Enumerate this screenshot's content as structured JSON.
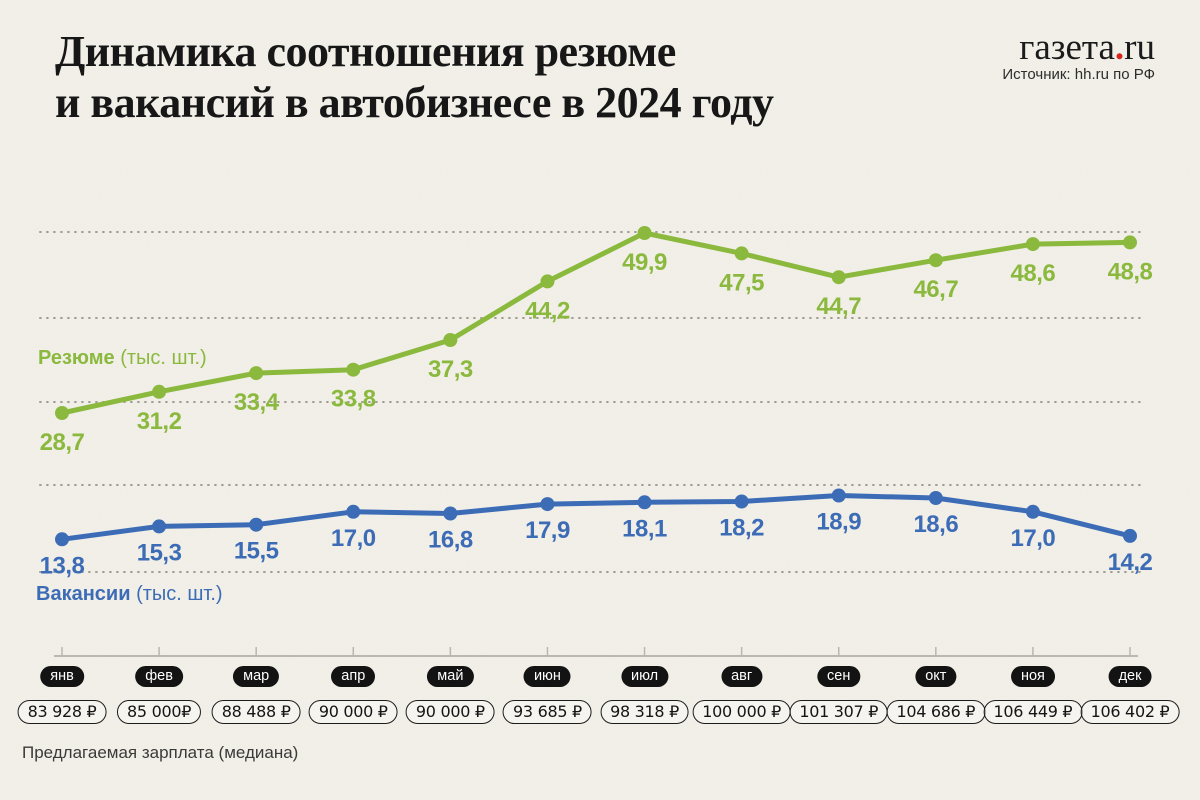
{
  "page": {
    "background": "#f2f0e8"
  },
  "header": {
    "title_line1": "Динамика соотношения резюме",
    "title_line2": "и вакансий в автобизнесе в 2024 году",
    "logo": {
      "prefix": "газета",
      "dot": ".",
      "suffix": "ru",
      "dot_color": "#d6251d"
    },
    "source": "Источник: hh.ru по РФ"
  },
  "chart_data": {
    "type": "line",
    "title": "Динамика соотношения резюме и вакансий в автобизнесе в 2024 году",
    "categories": [
      "янв",
      "фев",
      "мар",
      "апр",
      "май",
      "июн",
      "июл",
      "авг",
      "сен",
      "окт",
      "ноя",
      "дек"
    ],
    "series": [
      {
        "name": "Резюме",
        "unit": "(тыс. шт.)",
        "color": "#8bb93e",
        "values": [
          28.7,
          31.2,
          33.4,
          33.8,
          37.3,
          44.2,
          49.9,
          47.5,
          44.7,
          46.7,
          48.6,
          48.8
        ]
      },
      {
        "name": "Вакансии",
        "unit": "(тыс. шт.)",
        "color": "#3d6cb7",
        "values": [
          13.8,
          15.3,
          15.5,
          17.0,
          16.8,
          17.9,
          18.1,
          18.2,
          18.9,
          18.6,
          17.0,
          14.2
        ]
      }
    ],
    "salaries": [
      "83 928 ₽",
      "85 000₽",
      "88 488 ₽",
      "90 000 ₽",
      "90 000 ₽",
      "93 685 ₽",
      "98 318 ₽",
      "100 000 ₽",
      "101 307 ₽",
      "104 686 ₽",
      "106 449 ₽",
      "106 402 ₽"
    ],
    "salary_caption": "Предлагаемая зарплата (медиана)",
    "grid": {
      "style": "dotted-horizontal",
      "color": "#a09e94"
    },
    "axis": {
      "color": "#b9b7ae"
    },
    "decimal_separator": ",",
    "legend_position": "inline-left"
  }
}
